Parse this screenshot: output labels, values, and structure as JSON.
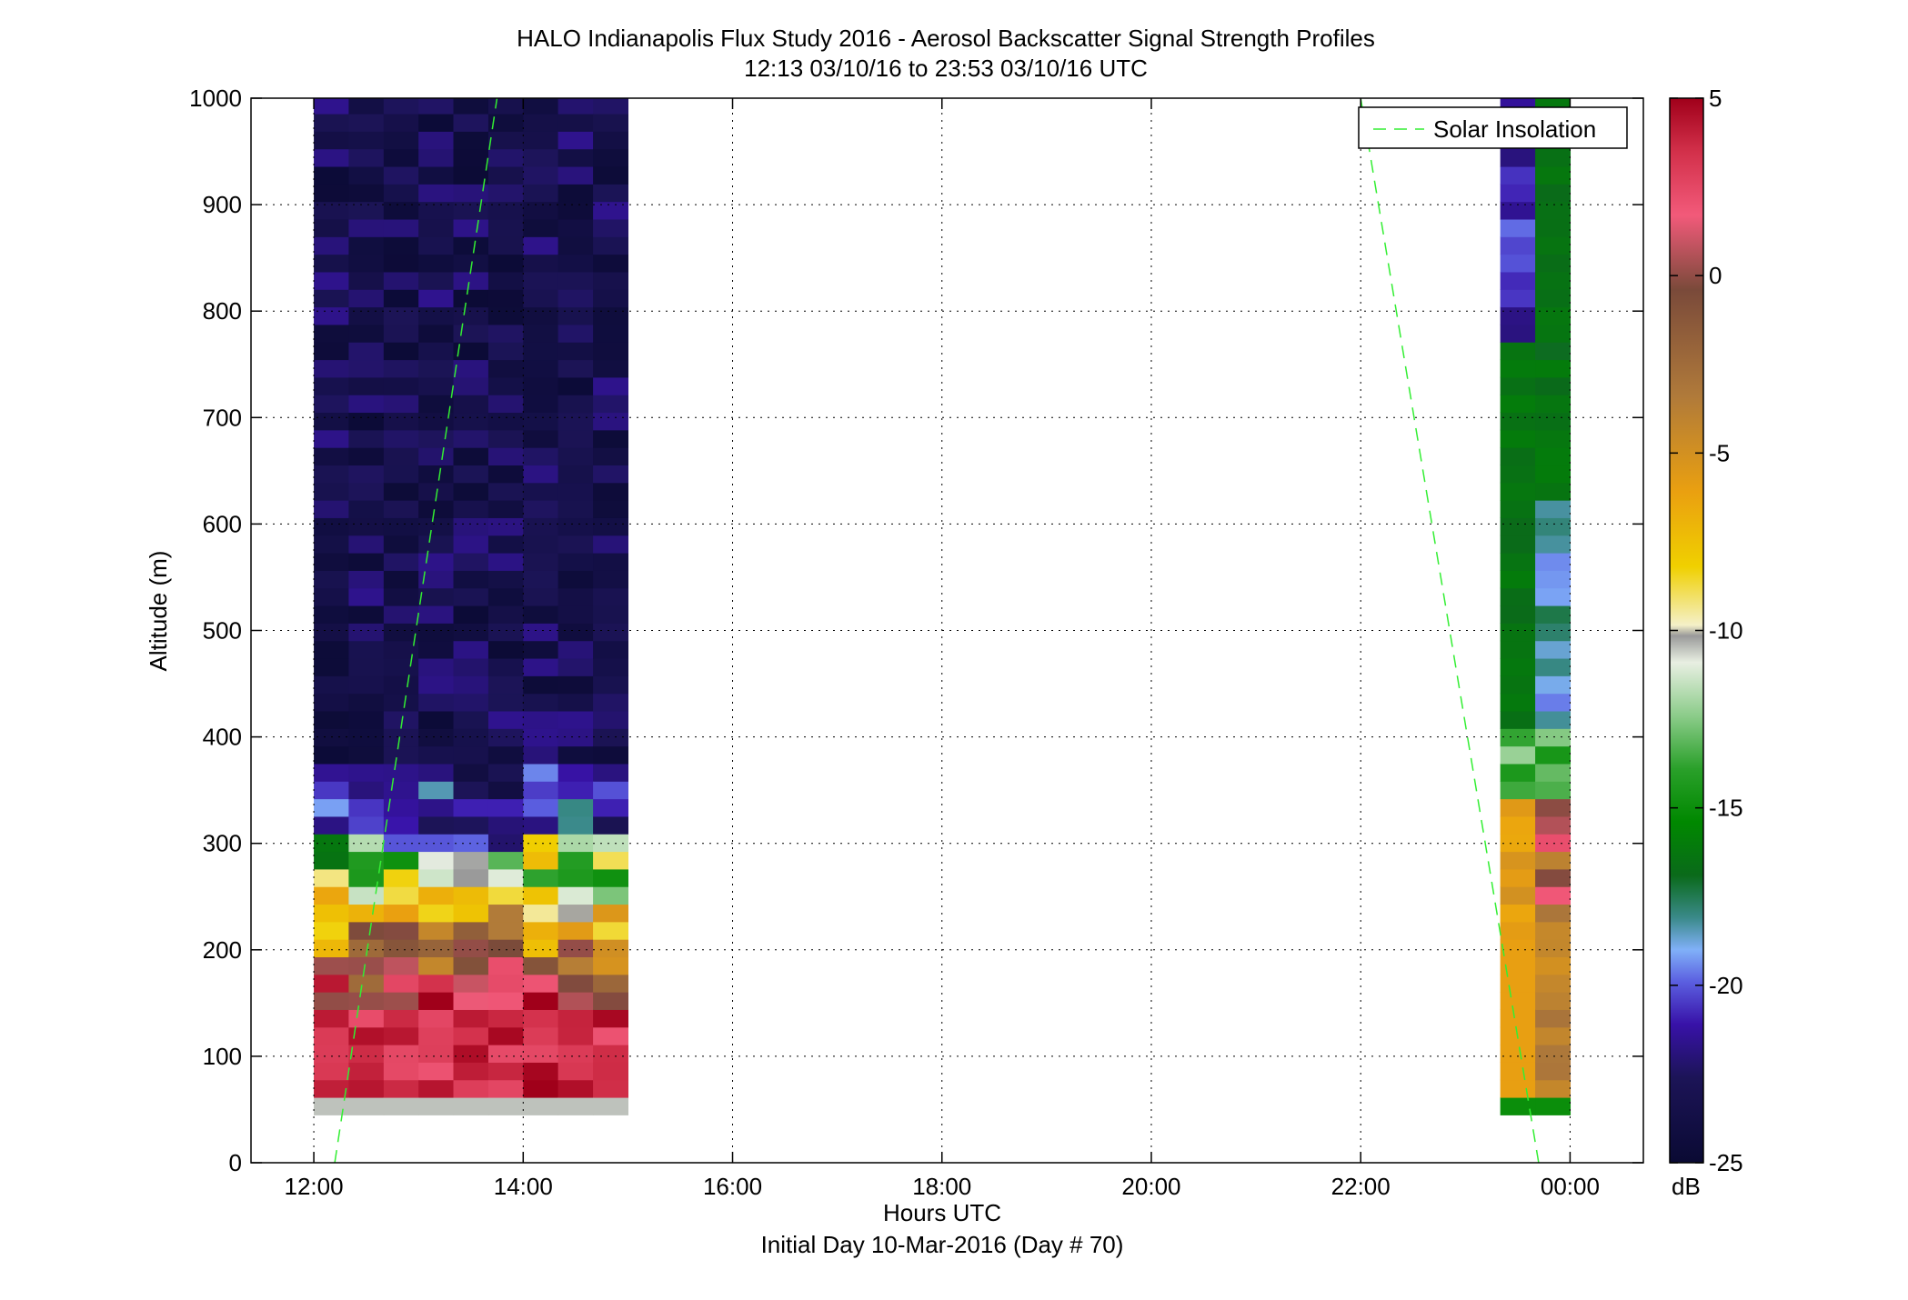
{
  "chart_data": {
    "type": "heatmap",
    "title": "HALO Indianapolis Flux Study 2016 - Aerosol Backscatter Signal Strength Profiles",
    "subtitle": "12:13 03/10/16 to 23:53 03/10/16  UTC",
    "xlabel": "Hours UTC",
    "xlabel2": "Initial Day 10-Mar-2016 (Day # 70)",
    "ylabel": "Altitude (m)",
    "xlim": [
      11.4,
      24.7
    ],
    "ylim": [
      0,
      1000
    ],
    "x_ticks": [
      12,
      14,
      16,
      18,
      20,
      22,
      24
    ],
    "x_tick_labels": [
      "12:00",
      "14:00",
      "16:00",
      "18:00",
      "20:00",
      "22:00",
      "00:00"
    ],
    "y_ticks": [
      0,
      100,
      200,
      300,
      400,
      500,
      600,
      700,
      800,
      900,
      1000
    ],
    "y_tick_labels": [
      "0",
      "100",
      "200",
      "300",
      "400",
      "500",
      "600",
      "700",
      "800",
      "900",
      "1000"
    ],
    "grid": true,
    "legend": {
      "position": "top-right",
      "entries": [
        "Solar Insolation"
      ]
    },
    "colorbar": {
      "label": "dB",
      "range": [
        -25,
        5
      ],
      "ticks": [
        5,
        0,
        -5,
        -10,
        -15,
        -20,
        -25
      ],
      "tick_labels": [
        "5",
        "0",
        "-5",
        "-10",
        "-15",
        "-20",
        "-25"
      ]
    },
    "profiles": [
      {
        "times": [
          12.0,
          12.333,
          12.667,
          13.0,
          13.333,
          13.667,
          14.0,
          14.333,
          14.667,
          15.0
        ],
        "altitude_range": [
          45,
          1000
        ],
        "note_low_gate_dB": -10.5
      },
      {
        "times": [
          23.333,
          23.667,
          24.0
        ],
        "altitude_range": [
          45,
          1000
        ],
        "note_low_gate_dB": -15
      }
    ],
    "series": [
      {
        "name": "Solar Insolation",
        "style": "dashed",
        "color": "#33ee33",
        "points": [
          [
            12.2,
            0
          ],
          [
            13.75,
            1000
          ]
        ]
      },
      {
        "name": "Solar Insolation",
        "style": "dashed",
        "color": "#33ee33",
        "points": [
          [
            22.0,
            1000
          ],
          [
            23.7,
            0
          ]
        ]
      }
    ]
  }
}
